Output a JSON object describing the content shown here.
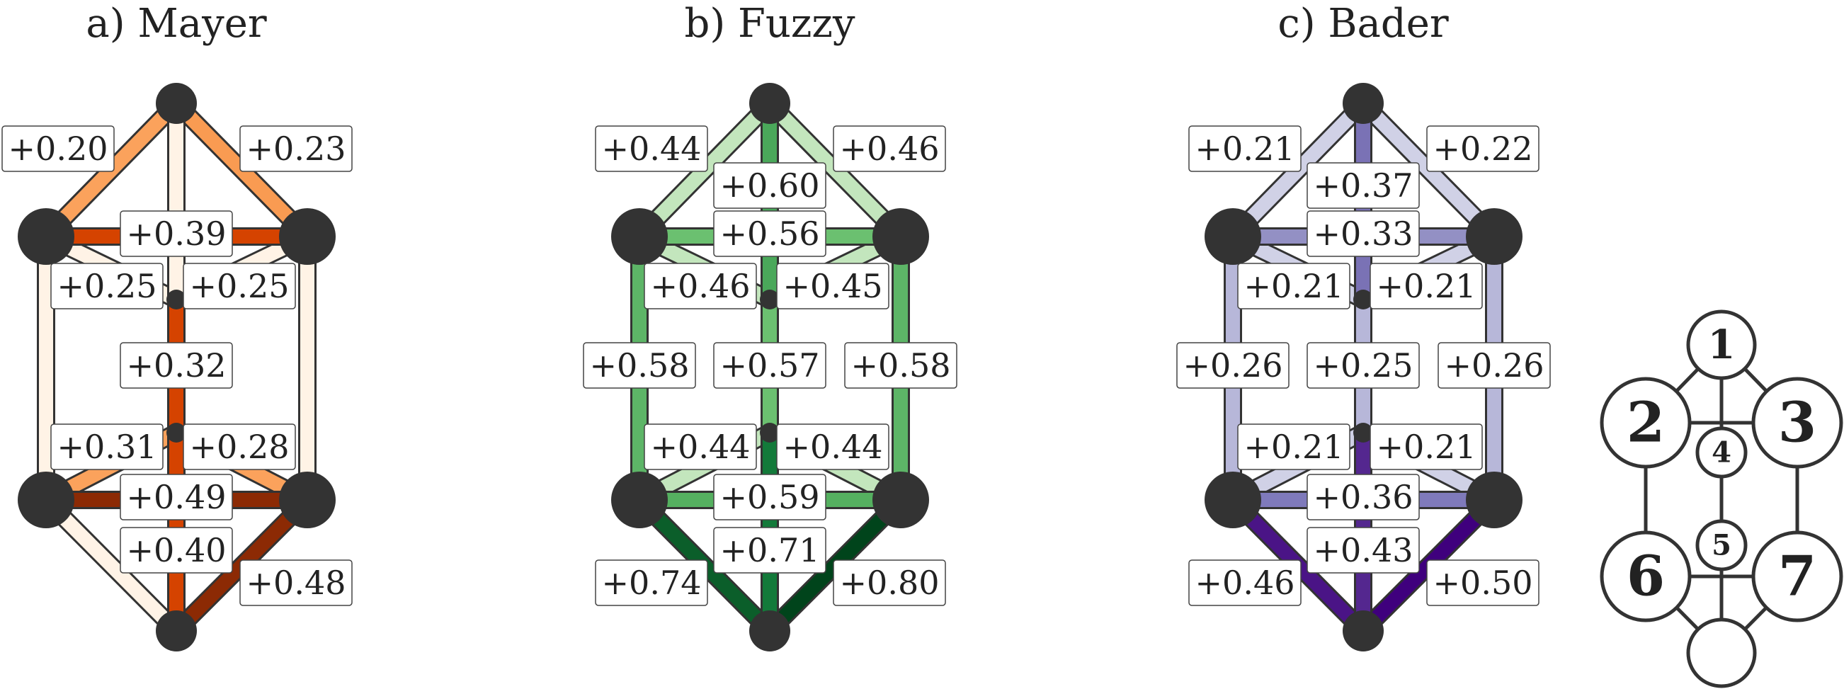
{
  "panels": [
    {
      "id": "mayer",
      "title": "a) Mayer",
      "bonds": [
        {
          "from": 1,
          "to": 2,
          "label": "+0.20",
          "color": "#fba25c"
        },
        {
          "from": 1,
          "to": 3,
          "label": "+0.23",
          "color": "#f99b52"
        },
        {
          "from": 1,
          "to": 4,
          "color": "#fff3e6"
        },
        {
          "from": 2,
          "to": 3,
          "label": "+0.39",
          "color": "#d54300"
        },
        {
          "from": 2,
          "to": 4,
          "label": "+0.25",
          "color": "#fff3e6"
        },
        {
          "from": 3,
          "to": 4,
          "label": "+0.25",
          "color": "#fff3e6"
        },
        {
          "from": 4,
          "to": 5,
          "label": "+0.32",
          "color": "#d54300"
        },
        {
          "from": 2,
          "to": 6,
          "label": "",
          "color": "#fff3e6"
        },
        {
          "from": 3,
          "to": 7,
          "label": "",
          "color": "#fff3e6"
        },
        {
          "from": 5,
          "to": 6,
          "label": "+0.31",
          "color": "#fba25c"
        },
        {
          "from": 5,
          "to": 7,
          "label": "+0.28",
          "color": "#fba25c"
        },
        {
          "from": 6,
          "to": 7,
          "label": "+0.49",
          "color": "#8c2a04"
        },
        {
          "from": 5,
          "to": 8,
          "label": "+0.40",
          "color": "#d54300"
        },
        {
          "from": 6,
          "to": 8,
          "color": "#fff3e6"
        },
        {
          "from": 7,
          "to": 8,
          "label": "+0.48",
          "color": "#8c2a04"
        }
      ]
    },
    {
      "id": "fuzzy",
      "title": "b) Fuzzy",
      "bonds": [
        {
          "from": 1,
          "to": 2,
          "label": "+0.44",
          "color": "#c3e6bd"
        },
        {
          "from": 1,
          "to": 3,
          "label": "+0.46",
          "color": "#c3e6bd"
        },
        {
          "from": 1,
          "to": 4,
          "label": "+0.60",
          "color": "#4aa85a"
        },
        {
          "from": 2,
          "to": 3,
          "label": "+0.56",
          "color": "#6bc070"
        },
        {
          "from": 2,
          "to": 4,
          "label": "+0.46",
          "color": "#c3e6bd"
        },
        {
          "from": 3,
          "to": 4,
          "label": "+0.45",
          "color": "#c3e6bd"
        },
        {
          "from": 4,
          "to": 5,
          "label": "+0.57",
          "color": "#6bc070"
        },
        {
          "from": 2,
          "to": 6,
          "label": "+0.58",
          "color": "#5db567"
        },
        {
          "from": 3,
          "to": 7,
          "label": "+0.58",
          "color": "#5db567"
        },
        {
          "from": 5,
          "to": 6,
          "label": "+0.44",
          "color": "#c3e6bd"
        },
        {
          "from": 5,
          "to": 7,
          "label": "+0.44",
          "color": "#c3e6bd"
        },
        {
          "from": 6,
          "to": 7,
          "label": "+0.59",
          "color": "#55b060"
        },
        {
          "from": 5,
          "to": 8,
          "label": "+0.71",
          "color": "#137a3a"
        },
        {
          "from": 6,
          "to": 8,
          "label": "+0.74",
          "color": "#0b5e2a"
        },
        {
          "from": 7,
          "to": 8,
          "label": "+0.80",
          "color": "#00441b"
        }
      ]
    },
    {
      "id": "bader",
      "title": "c) Bader",
      "bonds": [
        {
          "from": 1,
          "to": 2,
          "label": "+0.21",
          "color": "#d0d1e6"
        },
        {
          "from": 1,
          "to": 3,
          "label": "+0.22",
          "color": "#d0d1e6"
        },
        {
          "from": 1,
          "to": 4,
          "label": "+0.37",
          "color": "#7a72b5"
        },
        {
          "from": 2,
          "to": 3,
          "label": "+0.33",
          "color": "#9390c4"
        },
        {
          "from": 2,
          "to": 4,
          "label": "+0.21",
          "color": "#d0d1e6"
        },
        {
          "from": 3,
          "to": 4,
          "label": "+0.21",
          "color": "#d0d1e6"
        },
        {
          "from": 4,
          "to": 5,
          "label": "+0.25",
          "color": "#b7b7d9"
        },
        {
          "from": 2,
          "to": 6,
          "label": "+0.26",
          "color": "#b7b7d9"
        },
        {
          "from": 3,
          "to": 7,
          "label": "+0.26",
          "color": "#b7b7d9"
        },
        {
          "from": 5,
          "to": 6,
          "label": "+0.21",
          "color": "#d0d1e6"
        },
        {
          "from": 5,
          "to": 7,
          "label": "+0.21",
          "color": "#d0d1e6"
        },
        {
          "from": 6,
          "to": 7,
          "label": "+0.36",
          "color": "#7f7abb"
        },
        {
          "from": 5,
          "to": 8,
          "label": "+0.43",
          "color": "#54278f"
        },
        {
          "from": 6,
          "to": 8,
          "label": "+0.46",
          "color": "#4a1486"
        },
        {
          "from": 7,
          "to": 8,
          "label": "+0.50",
          "color": "#3f007d"
        }
      ]
    }
  ],
  "legend": {
    "nodes": [
      {
        "n": 1,
        "label": "1"
      },
      {
        "n": 2,
        "label": "2"
      },
      {
        "n": 3,
        "label": "3"
      },
      {
        "n": 4,
        "label": "4"
      },
      {
        "n": 5,
        "label": "5"
      },
      {
        "n": 6,
        "label": "6"
      },
      {
        "n": 7,
        "label": "7"
      },
      {
        "n": 8,
        "label": ""
      }
    ],
    "edges": [
      [
        1,
        2
      ],
      [
        1,
        3
      ],
      [
        1,
        4
      ],
      [
        2,
        3
      ],
      [
        2,
        6
      ],
      [
        3,
        7
      ],
      [
        4,
        5
      ],
      [
        6,
        7
      ],
      [
        6,
        8
      ],
      [
        7,
        8
      ],
      [
        5,
        8
      ]
    ]
  }
}
